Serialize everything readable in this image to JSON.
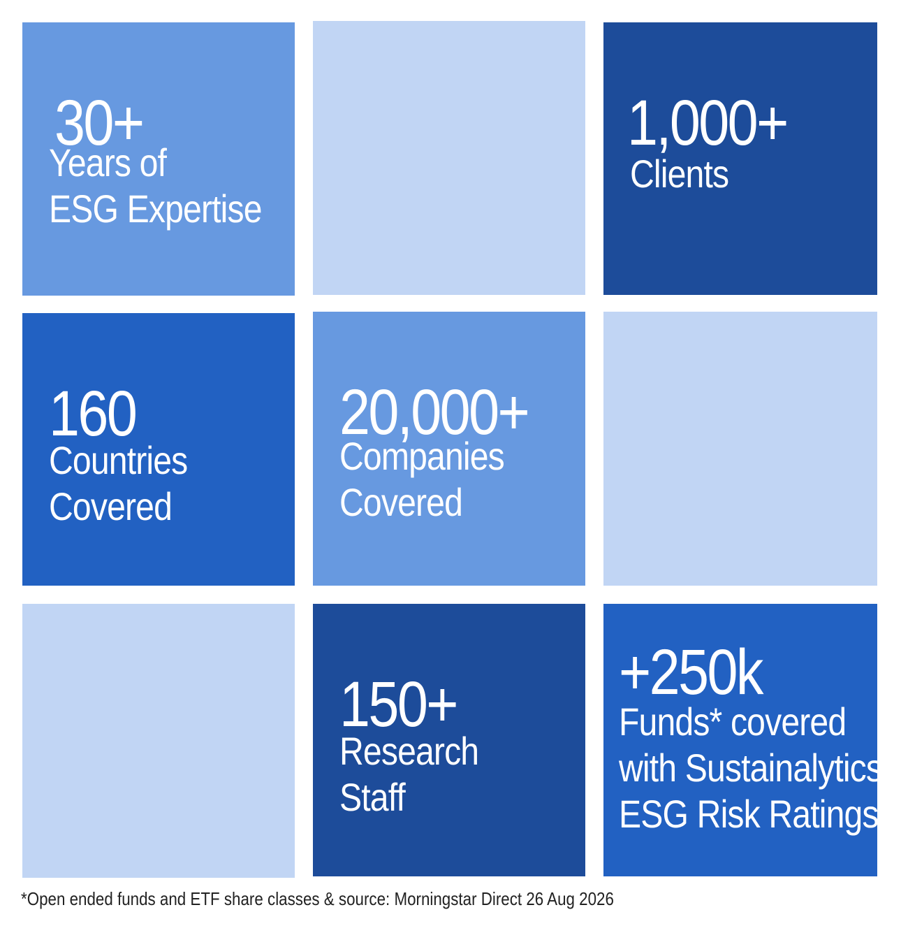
{
  "tiles": [
    {
      "value": "30+",
      "label_lines": [
        "Years of",
        "ESG Expertise"
      ],
      "color": "#6799e0"
    },
    {
      "value": "",
      "label_lines": [],
      "color": "#c1d5f4"
    },
    {
      "value": "1,000+",
      "label_lines": [
        "Clients"
      ],
      "color": "#1d4c9a"
    },
    {
      "value": "160",
      "label_lines": [
        "Countries",
        "Covered"
      ],
      "color": "#2261c2"
    },
    {
      "value": "20,000+",
      "label_lines": [
        "Companies",
        "Covered"
      ],
      "color": "#6799e0"
    },
    {
      "value": "",
      "label_lines": [],
      "color": "#c1d5f4"
    },
    {
      "value": "",
      "label_lines": [],
      "color": "#c1d5f4"
    },
    {
      "value": "150+",
      "label_lines": [
        "Research",
        "Staff"
      ],
      "color": "#1d4c9a"
    },
    {
      "value": "+250k",
      "label_lines": [
        "Funds* covered",
        "with Sustainalytics",
        "ESG Risk Ratings"
      ],
      "color": "#2261c2"
    }
  ],
  "footnote": "*Open ended funds and ETF share classes & source: Morningstar Direct 26 Aug 2026"
}
